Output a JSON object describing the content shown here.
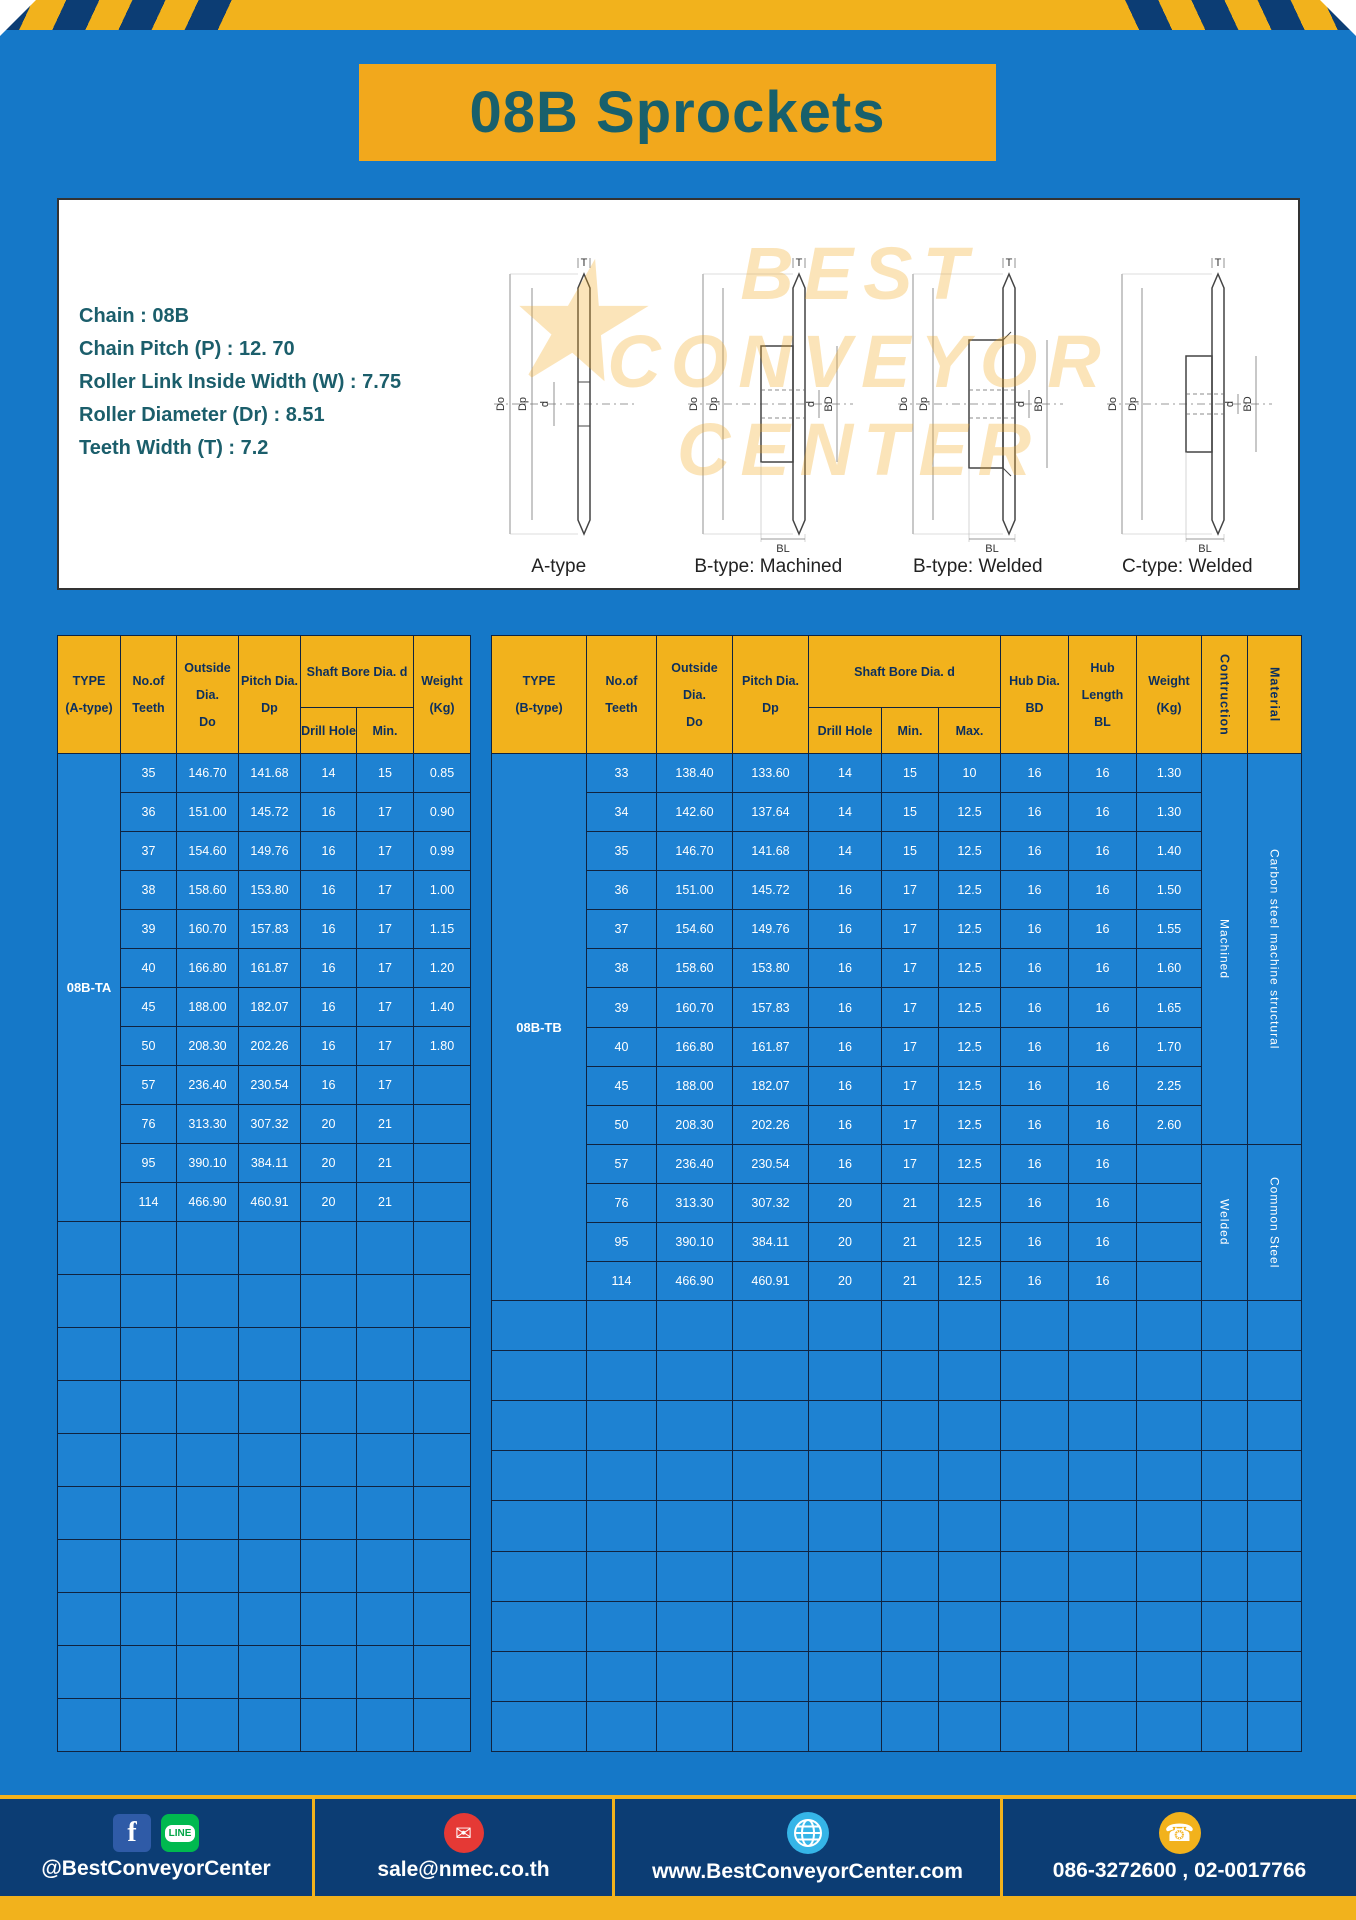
{
  "colors": {
    "background_blue": "#1578c8",
    "accent_yellow": "#f2b21c",
    "banner_yellow": "#f2a81c",
    "header_navy": "#0c3d74",
    "title_teal": "#18606c",
    "table_cell_blue": "#1e82d2"
  },
  "title": "08B Sprockets",
  "specs": {
    "lines": [
      "Chain  :  08B",
      "Chain Pitch (P)  :  12. 70",
      "Roller Link Inside Width (W)  :  7.75",
      "Roller Diameter (Dr)  :  8.51",
      "Teeth Width (T)  :  7.2"
    ],
    "captions": [
      "A-type",
      "B-type: Machined",
      "B-type: Welded",
      "C-type: Welded"
    ],
    "dims": {
      "t": "T",
      "do": "Do",
      "dp": "Dp",
      "d": "d",
      "bd": "BD",
      "bl": "BL"
    },
    "watermark": {
      "star": "★",
      "line1": "BEST",
      "line2": "CONVEYOR",
      "line3": "CENTER"
    }
  },
  "table_a": {
    "type_label": "08B-TA",
    "headers": {
      "type_l1": "TYPE",
      "type_l2": "(A-type)",
      "teeth_l1": "No.of",
      "teeth_l2": "Teeth",
      "outside_l1": "Outside",
      "outside_l2": "Dia.",
      "outside_l3": "Do",
      "pitch_l1": "Pitch Dia.",
      "pitch_l2": "Dp",
      "shaft_bore": "Shaft Bore Dia. d",
      "drill": "Drill Hole",
      "min": "Min.",
      "weight_l1": "Weight",
      "weight_l2": "(Kg)"
    },
    "rows": [
      [
        "35",
        "146.70",
        "141.68",
        "14",
        "15",
        "0.85"
      ],
      [
        "36",
        "151.00",
        "145.72",
        "16",
        "17",
        "0.90"
      ],
      [
        "37",
        "154.60",
        "149.76",
        "16",
        "17",
        "0.99"
      ],
      [
        "38",
        "158.60",
        "153.80",
        "16",
        "17",
        "1.00"
      ],
      [
        "39",
        "160.70",
        "157.83",
        "16",
        "17",
        "1.15"
      ],
      [
        "40",
        "166.80",
        "161.87",
        "16",
        "17",
        "1.20"
      ],
      [
        "45",
        "188.00",
        "182.07",
        "16",
        "17",
        "1.40"
      ],
      [
        "50",
        "208.30",
        "202.26",
        "16",
        "17",
        "1.80"
      ],
      [
        "57",
        "236.40",
        "230.54",
        "16",
        "17",
        ""
      ],
      [
        "76",
        "313.30",
        "307.32",
        "20",
        "21",
        ""
      ],
      [
        "95",
        "390.10",
        "384.11",
        "20",
        "21",
        ""
      ],
      [
        "114",
        "466.90",
        "460.91",
        "20",
        "21",
        ""
      ]
    ],
    "empty_row_count": 10
  },
  "table_b": {
    "type_label": "08B-TB",
    "headers": {
      "type_l1": "TYPE",
      "type_l2": "(B-type)",
      "teeth_l1": "No.of",
      "teeth_l2": "Teeth",
      "outside_l1": "Outside",
      "outside_l2": "Dia.",
      "outside_l3": "Do",
      "pitch_l1": "Pitch Dia.",
      "pitch_l2": "Dp",
      "shaft_bore": "Shaft Bore Dia. d",
      "drill": "Drill Hole",
      "min": "Min.",
      "max": "Max.",
      "hub_dia_l1": "Hub Dia.",
      "hub_dia_l2": "BD",
      "hub_len_l1": "Hub",
      "hub_len_l2": "Length",
      "hub_len_l3": "BL",
      "weight_l1": "Weight",
      "weight_l2": "(Kg)",
      "construction": "Contruction",
      "material": "Material"
    },
    "rows": [
      [
        "33",
        "138.40",
        "133.60",
        "14",
        "15",
        "10",
        "16",
        "16",
        "1.30"
      ],
      [
        "34",
        "142.60",
        "137.64",
        "14",
        "15",
        "12.5",
        "16",
        "16",
        "1.30"
      ],
      [
        "35",
        "146.70",
        "141.68",
        "14",
        "15",
        "12.5",
        "16",
        "16",
        "1.40"
      ],
      [
        "36",
        "151.00",
        "145.72",
        "16",
        "17",
        "12.5",
        "16",
        "16",
        "1.50"
      ],
      [
        "37",
        "154.60",
        "149.76",
        "16",
        "17",
        "12.5",
        "16",
        "16",
        "1.55"
      ],
      [
        "38",
        "158.60",
        "153.80",
        "16",
        "17",
        "12.5",
        "16",
        "16",
        "1.60"
      ],
      [
        "39",
        "160.70",
        "157.83",
        "16",
        "17",
        "12.5",
        "16",
        "16",
        "1.65"
      ],
      [
        "40",
        "166.80",
        "161.87",
        "16",
        "17",
        "12.5",
        "16",
        "16",
        "1.70"
      ],
      [
        "45",
        "188.00",
        "182.07",
        "16",
        "17",
        "12.5",
        "16",
        "16",
        "2.25"
      ],
      [
        "50",
        "208.30",
        "202.26",
        "16",
        "17",
        "12.5",
        "16",
        "16",
        "2.60"
      ],
      [
        "57",
        "236.40",
        "230.54",
        "16",
        "17",
        "12.5",
        "16",
        "16",
        ""
      ],
      [
        "76",
        "313.30",
        "307.32",
        "20",
        "21",
        "12.5",
        "16",
        "16",
        ""
      ],
      [
        "95",
        "390.10",
        "384.11",
        "20",
        "21",
        "12.5",
        "16",
        "16",
        ""
      ],
      [
        "114",
        "466.90",
        "460.91",
        "20",
        "21",
        "12.5",
        "16",
        "16",
        ""
      ]
    ],
    "construction_groups": [
      {
        "label": "Machined",
        "rows": 10
      },
      {
        "label": "Welded",
        "rows": 4
      }
    ],
    "material_groups": [
      {
        "label": "Carbon steel  machine structural",
        "rows": 10
      },
      {
        "label": "Common  Steel",
        "rows": 4
      }
    ],
    "empty_row_count": 9
  },
  "footer": {
    "facebook_glyph": "f",
    "line_label": "LINE",
    "mail_glyph": "✉",
    "phone_glyph": "☎",
    "social_handle": "@BestConveyorCenter",
    "email": "sale@nmec.co.th",
    "website": "www.BestConveyorCenter.com",
    "phones": "086-3272600 , 02-0017766"
  }
}
